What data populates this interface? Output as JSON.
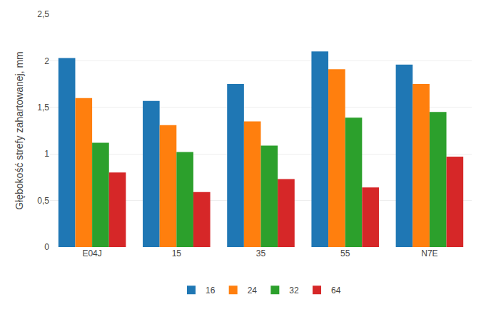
{
  "chart_data": {
    "type": "bar",
    "categories": [
      "E04J",
      "15",
      "35",
      "55",
      "N7E"
    ],
    "series": [
      {
        "name": "16",
        "values": [
          2.03,
          1.57,
          1.75,
          2.1,
          1.96
        ]
      },
      {
        "name": "24",
        "values": [
          1.6,
          1.31,
          1.35,
          1.91,
          1.75
        ]
      },
      {
        "name": "32",
        "values": [
          1.12,
          1.02,
          1.09,
          1.39,
          1.45
        ]
      },
      {
        "name": "64",
        "values": [
          0.8,
          0.59,
          0.73,
          0.64,
          0.97
        ]
      }
    ],
    "ylabel": "Głębokość strefy zahartowanej, mm",
    "ylim": [
      0,
      2.5
    ],
    "yticks": [
      0,
      {
        "value": 0.5,
        "label": "0,5"
      },
      1,
      {
        "value": 1.5,
        "label": "1,5"
      },
      2,
      {
        "value": 2.5,
        "label": "2,5"
      }
    ],
    "grid": true,
    "legend": "bottom"
  }
}
